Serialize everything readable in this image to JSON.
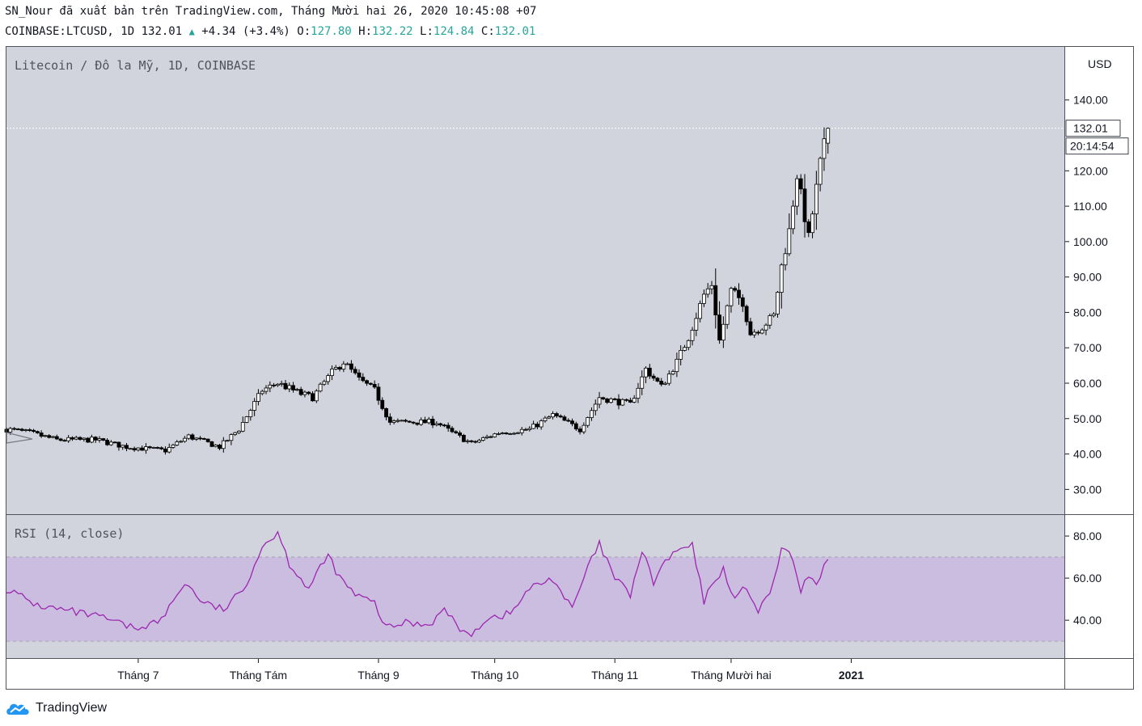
{
  "header": {
    "publish_line": "SN_Nour đã xuất bản trên TradingView.com, Tháng Mười hai 26, 2020 10:45:08 +07",
    "symbol": "COINBASE:LTCUSD, 1D",
    "last": "132.01",
    "up_arrow": "▲",
    "change": "+4.34 (+3.4%)",
    "o_label": "O:",
    "o_value": "127.80",
    "h_label": "H:",
    "h_value": "132.22",
    "l_label": "L:",
    "l_value": "124.84",
    "c_label": "C:",
    "c_value": "132.01"
  },
  "main_pane": {
    "title": "Litecoin / Đô la Mỹ, 1D, COINBASE"
  },
  "rsi_pane": {
    "title": "RSI (14, close)"
  },
  "price_axis": {
    "unit": "USD",
    "ticks": [
      "140.00",
      "120.00",
      "110.00",
      "100.00",
      "90.00",
      "80.00",
      "70.00",
      "60.00",
      "50.00",
      "40.00",
      "30.00"
    ],
    "last_price": "132.01",
    "countdown": "20:14:54"
  },
  "rsi_axis": {
    "ticks": [
      "80.00",
      "60.00",
      "40.00"
    ]
  },
  "time_axis": {
    "labels": [
      "Tháng 7",
      "Tháng Tám",
      "Tháng 9",
      "Tháng 10",
      "Tháng 11",
      "Tháng Mười hai",
      "2021"
    ]
  },
  "branding": {
    "name": "TradingView"
  },
  "colors": {
    "up": "#26a69a",
    "rsi_line": "#9c27b0",
    "rsi_band": "#cbbde0",
    "pane_bg": "#d1d4dc"
  },
  "chart_data": [
    {
      "type": "candlestick",
      "title": "Litecoin / Đô la Mỹ, 1D, COINBASE",
      "ylabel": "USD",
      "ylim": [
        23,
        155
      ],
      "x_range": [
        "2020-05-28",
        "2021-02-25"
      ],
      "x_ticks": [
        "Tháng 7",
        "Tháng Tám",
        "Tháng 9",
        "Tháng 10",
        "Tháng 11",
        "Tháng Mười hai",
        "2021"
      ],
      "close_anchors": [
        [
          "2020-05-28",
          47
        ],
        [
          "2020-06-03",
          46
        ],
        [
          "2020-06-10",
          44
        ],
        [
          "2020-06-20",
          44
        ],
        [
          "2020-06-28",
          42
        ],
        [
          "2020-07-08",
          41
        ],
        [
          "2020-07-14",
          45
        ],
        [
          "2020-07-22",
          42
        ],
        [
          "2020-07-27",
          47
        ],
        [
          "2020-08-02",
          58
        ],
        [
          "2020-08-06",
          60
        ],
        [
          "2020-08-12",
          57
        ],
        [
          "2020-08-15",
          56
        ],
        [
          "2020-08-20",
          63
        ],
        [
          "2020-08-23",
          66
        ],
        [
          "2020-08-27",
          61
        ],
        [
          "2020-08-31",
          58
        ],
        [
          "2020-09-04",
          49
        ],
        [
          "2020-09-10",
          49
        ],
        [
          "2020-09-16",
          49
        ],
        [
          "2020-09-20",
          46
        ],
        [
          "2020-09-25",
          43
        ],
        [
          "2020-10-02",
          46
        ],
        [
          "2020-10-10",
          47
        ],
        [
          "2020-10-16",
          51
        ],
        [
          "2020-10-23",
          47
        ],
        [
          "2020-10-28",
          56
        ],
        [
          "2020-11-05",
          54
        ],
        [
          "2020-11-09",
          64
        ],
        [
          "2020-11-13",
          59
        ],
        [
          "2020-11-17",
          66
        ],
        [
          "2020-11-20",
          73
        ],
        [
          "2020-11-24",
          85
        ],
        [
          "2020-11-26",
          88
        ],
        [
          "2020-11-28",
          72
        ],
        [
          "2020-12-01",
          86
        ],
        [
          "2020-12-04",
          83
        ],
        [
          "2020-12-06",
          74
        ],
        [
          "2020-12-09",
          76
        ],
        [
          "2020-12-12",
          79
        ],
        [
          "2020-12-14",
          93
        ],
        [
          "2020-12-16",
          103
        ],
        [
          "2020-12-18",
          119
        ],
        [
          "2020-12-21",
          101
        ],
        [
          "2020-12-24",
          122
        ],
        [
          "2020-12-26",
          132.01
        ]
      ],
      "last_candle": {
        "date": "2020-12-26",
        "open": 127.8,
        "high": 132.22,
        "low": 124.84,
        "close": 132.01,
        "change": 4.34,
        "change_pct": 3.4
      }
    },
    {
      "type": "line",
      "title": "RSI (14, close)",
      "ylim": [
        22,
        90
      ],
      "bands": [
        30,
        70
      ],
      "series": [
        {
          "x": [
            "2020-05-28",
            "2020-06-05",
            "2020-06-14",
            "2020-06-22",
            "2020-06-30",
            "2020-07-07",
            "2020-07-13",
            "2020-07-18",
            "2020-07-23",
            "2020-07-28",
            "2020-08-02",
            "2020-08-06",
            "2020-08-09",
            "2020-08-14",
            "2020-08-19",
            "2020-08-22",
            "2020-08-26",
            "2020-08-31",
            "2020-09-03",
            "2020-09-08",
            "2020-09-14",
            "2020-09-18",
            "2020-09-24",
            "2020-09-29",
            "2020-10-05",
            "2020-10-10",
            "2020-10-16",
            "2020-10-21",
            "2020-10-25",
            "2020-10-28",
            "2020-11-01",
            "2020-11-05",
            "2020-11-08",
            "2020-11-11",
            "2020-11-14",
            "2020-11-18",
            "2020-11-21",
            "2020-11-24",
            "2020-11-27",
            "2020-11-29",
            "2020-12-02",
            "2020-12-05",
            "2020-12-08",
            "2020-12-11",
            "2020-12-14",
            "2020-12-17",
            "2020-12-19",
            "2020-12-21",
            "2020-12-23",
            "2020-12-26"
          ],
          "values": [
            55,
            47,
            44,
            41,
            36,
            40,
            58,
            48,
            45,
            54,
            75,
            82,
            67,
            55,
            71,
            60,
            52,
            48,
            36,
            39,
            38,
            45,
            32,
            41,
            43,
            55,
            60,
            45,
            65,
            76,
            60,
            52,
            73,
            58,
            68,
            74,
            75,
            49,
            60,
            64,
            50,
            56,
            44,
            52,
            74,
            69,
            52,
            62,
            57,
            70
          ]
        }
      ]
    }
  ]
}
